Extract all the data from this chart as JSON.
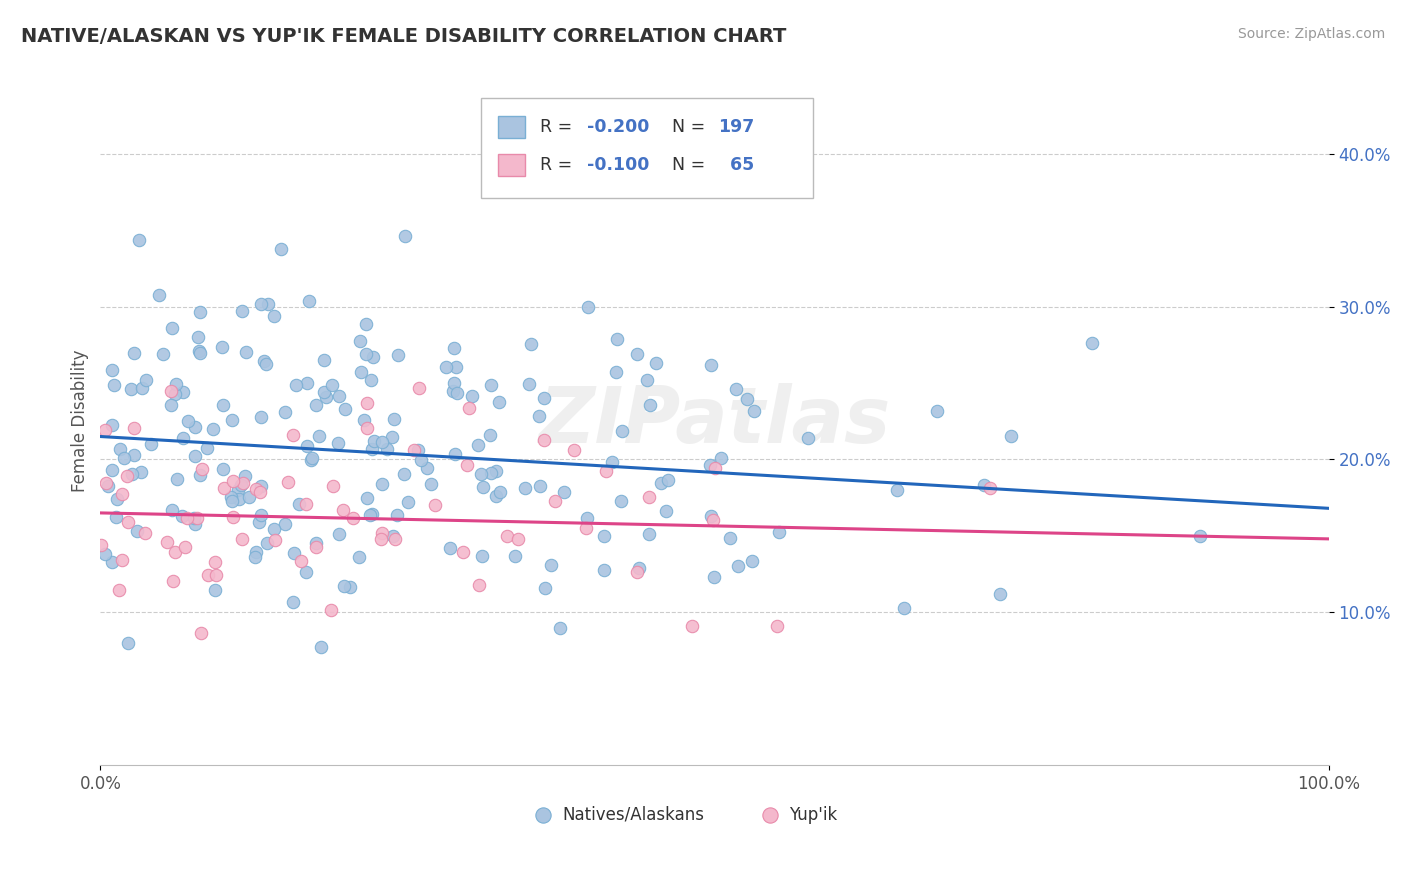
{
  "title": "NATIVE/ALASKAN VS YUP'IK FEMALE DISABILITY CORRELATION CHART",
  "source": "Source: ZipAtlas.com",
  "ylabel": "Female Disability",
  "legend_labels": [
    "Natives/Alaskans",
    "Yup'ik"
  ],
  "blue_color": "#aac4e0",
  "blue_edge": "#7aafd4",
  "pink_color": "#f4b8cc",
  "pink_edge": "#e88aaa",
  "line_blue": "#2266bb",
  "line_pink": "#dd4488",
  "r_blue": -0.2,
  "r_pink": -0.1,
  "n_blue": 197,
  "n_pink": 65,
  "xlim": [
    0,
    1
  ],
  "ylim": [
    0.0,
    0.45
  ],
  "y_ticks": [
    0.1,
    0.2,
    0.3,
    0.4
  ],
  "y_tick_labels": [
    "10.0%",
    "20.0%",
    "30.0%",
    "40.0%"
  ],
  "background_color": "#ffffff",
  "grid_color": "#cccccc",
  "watermark": "ZIPatlas",
  "blue_line_start": 0.215,
  "blue_line_end": 0.168,
  "pink_line_start": 0.165,
  "pink_line_end": 0.148
}
